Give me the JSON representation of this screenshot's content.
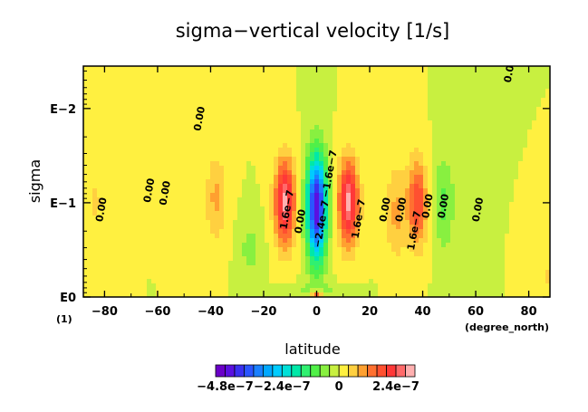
{
  "chart_data": {
    "type": "heatmap",
    "title": "sigma−vertical velocity [1/s]",
    "xlabel": "latitude",
    "ylabel": "sigma",
    "x_unit": "(degree_north)",
    "y_unit": "(1)",
    "xlim": [
      -88,
      88
    ],
    "ylim_log10": [
      -2.45,
      0
    ],
    "y_scale": "log",
    "x_ticks": [
      {
        "value": -80,
        "label": "−80"
      },
      {
        "value": -60,
        "label": "−60"
      },
      {
        "value": -40,
        "label": "−40"
      },
      {
        "value": -20,
        "label": "−20"
      },
      {
        "value": 0,
        "label": "0"
      },
      {
        "value": 20,
        "label": "20"
      },
      {
        "value": 40,
        "label": "40"
      },
      {
        "value": 60,
        "label": "60"
      },
      {
        "value": 80,
        "label": "80"
      }
    ],
    "y_ticks": [
      {
        "value": 1.0,
        "label": "E0"
      },
      {
        "value": 0.1,
        "label": "E−1"
      },
      {
        "value": 0.01,
        "label": "E−2"
      }
    ],
    "contour_labels": [
      {
        "lat": -80,
        "sigma": 0.12,
        "text": "0.00"
      },
      {
        "lat": -62,
        "sigma": 0.075,
        "text": "0.00"
      },
      {
        "lat": -56,
        "sigma": 0.08,
        "text": "0.00"
      },
      {
        "lat": -43,
        "sigma": 0.013,
        "text": "0.00"
      },
      {
        "lat": -10,
        "sigma": 0.12,
        "text": "1.6e−7"
      },
      {
        "lat": -5,
        "sigma": 0.16,
        "text": "0.00"
      },
      {
        "lat": 3,
        "sigma": 0.17,
        "text": "−2.4e−7"
      },
      {
        "lat": 6,
        "sigma": 0.05,
        "text": "−1.6e−7"
      },
      {
        "lat": 17,
        "sigma": 0.15,
        "text": "1.6e−7"
      },
      {
        "lat": 27,
        "sigma": 0.12,
        "text": "0.00"
      },
      {
        "lat": 33,
        "sigma": 0.12,
        "text": "0.00"
      },
      {
        "lat": 38,
        "sigma": 0.2,
        "text": "1.6e−7"
      },
      {
        "lat": 43,
        "sigma": 0.11,
        "text": "0.00"
      },
      {
        "lat": 49,
        "sigma": 0.11,
        "text": "0.00"
      },
      {
        "lat": 62,
        "sigma": 0.12,
        "text": "0.00"
      },
      {
        "lat": 74,
        "sigma": 0.004,
        "text": "0.00"
      }
    ],
    "colorbar": {
      "levels": [
        -5.2e-07,
        -4.8e-07,
        -4.4e-07,
        -4e-07,
        -3.6e-07,
        -3.2e-07,
        -2.8e-07,
        -2.4e-07,
        -2e-07,
        -1.6e-07,
        -1.2e-07,
        -8e-08,
        -4e-08,
        0,
        4e-08,
        8e-08,
        1.2e-07,
        1.6e-07,
        2e-07,
        2.4e-07,
        2.8e-07,
        3.2e-07
      ],
      "colors": [
        "#6a00c8",
        "#5a10e0",
        "#3a30f0",
        "#2a55ff",
        "#1a80ff",
        "#00a8ff",
        "#00ccff",
        "#00e0d8",
        "#00e8a8",
        "#30f070",
        "#50f048",
        "#88f040",
        "#c8f040",
        "#fff040",
        "#ffd040",
        "#ffa030",
        "#ff7030",
        "#ff5030",
        "#ff3838",
        "#ff6a6a",
        "#ffb0b0"
      ],
      "tick_labels": [
        {
          "value": -4.8e-07,
          "label": "−4.8e−7"
        },
        {
          "value": -2.4e-07,
          "label": "−2.4e−7"
        },
        {
          "value": 0,
          "label": "0"
        },
        {
          "value": 2.4e-07,
          "label": "2.4e−7"
        }
      ]
    }
  }
}
